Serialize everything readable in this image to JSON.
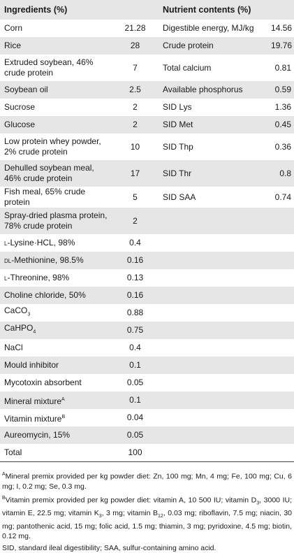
{
  "headers": {
    "ingredients": "Ingredients (%)",
    "nutrients": "Nutrient contents (%)"
  },
  "rows": [
    {
      "ingredient": "Corn",
      "amount": "21.28",
      "nutrient": "Digestible energy, MJ/kg",
      "nvalue": "14.56"
    },
    {
      "ingredient": "Rice",
      "amount": "28",
      "nutrient": "Crude protein",
      "nvalue": "19.76"
    },
    {
      "ingredient": "Extruded soybean, 46% crude protein",
      "amount": "7",
      "nutrient": "Total calcium",
      "nvalue": "0.81"
    },
    {
      "ingredient": "Soybean oil",
      "amount": "2.5",
      "nutrient": "Available phosphorus",
      "nvalue": "0.59"
    },
    {
      "ingredient": "Sucrose",
      "amount": "2",
      "nutrient": "SID Lys",
      "nvalue": "1.36"
    },
    {
      "ingredient": "Glucose",
      "amount": "2",
      "nutrient": "SID Met",
      "nvalue": "0.45"
    },
    {
      "ingredient": "Low protein whey powder, 2% crude protein",
      "amount": "10",
      "nutrient": "SID Thp",
      "nvalue": "0.36"
    },
    {
      "ingredient": "Dehulled soybean meal, 46% crude protein",
      "amount": "17",
      "nutrient": "SID Thr",
      "nvalue": "0.8"
    },
    {
      "ingredient": "Fish meal, 65% crude protein",
      "amount": "5",
      "nutrient": "SID SAA",
      "nvalue": "0.74"
    },
    {
      "ingredient": "Spray-dried plasma protein, 78% crude protein",
      "amount": "2",
      "nutrient": "",
      "nvalue": ""
    },
    {
      "ingredient": "L-Lysine·HCL, 98%",
      "amount": "0.4",
      "nutrient": "",
      "nvalue": ""
    },
    {
      "ingredient": "DL-Methionine, 98.5%",
      "amount": "0.16",
      "nutrient": "",
      "nvalue": ""
    },
    {
      "ingredient": "L-Threonine, 98%",
      "amount": "0.13",
      "nutrient": "",
      "nvalue": ""
    },
    {
      "ingredient": "Choline chloride, 50%",
      "amount": "0.16",
      "nutrient": "",
      "nvalue": ""
    },
    {
      "ingredient": "CaCO3",
      "amount": "0.88",
      "nutrient": "",
      "nvalue": ""
    },
    {
      "ingredient": "CaHPO4",
      "amount": "0.75",
      "nutrient": "",
      "nvalue": ""
    },
    {
      "ingredient": "NaCl",
      "amount": "0.4",
      "nutrient": "",
      "nvalue": ""
    },
    {
      "ingredient": "Mould inhibitor",
      "amount": "0.1",
      "nutrient": "",
      "nvalue": ""
    },
    {
      "ingredient": "Mycotoxin absorbent",
      "amount": "0.05",
      "nutrient": "",
      "nvalue": ""
    },
    {
      "ingredient": "Mineral mixtureA",
      "amount": "0.1",
      "nutrient": "",
      "nvalue": ""
    },
    {
      "ingredient": "Vitamin mixtureB",
      "amount": "0.04",
      "nutrient": "",
      "nvalue": ""
    },
    {
      "ingredient": "Aureomycin, 15%",
      "amount": "0.05",
      "nutrient": "",
      "nvalue": ""
    },
    {
      "ingredient": "Total",
      "amount": "100",
      "nutrient": "",
      "nvalue": ""
    }
  ],
  "footnotes": [
    "AMineral premix provided per kg powder diet: Zn, 100 mg; Mn, 4 mg; Fe, 100 mg; Cu, 6 mg; I, 0.2 mg; Se, 0.3 mg.",
    "BVitamin premix provided per kg powder diet: vitamin A, 10 500 IU; vitamin D3, 3000 IU; vitamin E, 22.5 mg; vitamin K3, 3 mg; vitamin B12, 0.03 mg; riboflavin, 7.5 mg; niacin, 30 mg; pantothenic acid, 15 mg; folic acid, 1.5 mg; thiamin, 3 mg; pyridoxine, 4.5 mg; biotin, 0.12 mg.",
    "SID, standard ileal digestibility; SAA, sulfur-containing amino acid."
  ]
}
